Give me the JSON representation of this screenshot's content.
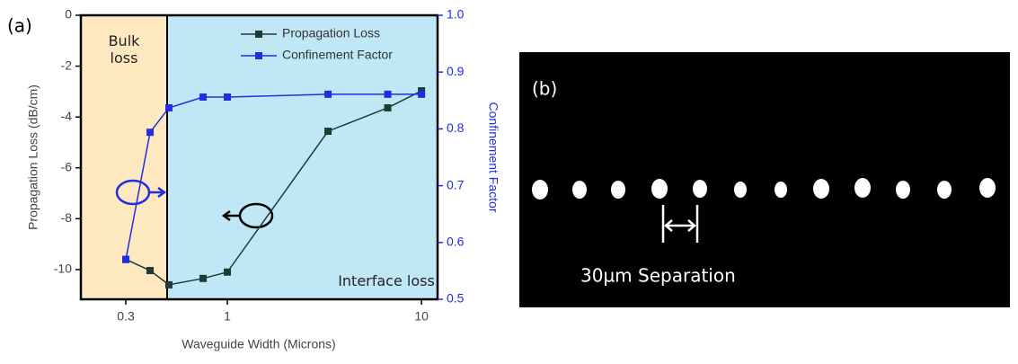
{
  "chart_data": {
    "type": "line",
    "panel_label": "(a)",
    "xlabel": "Waveguide Width (Microns)",
    "ylabel": "Propagation Loss (dB/cm)",
    "y2label": "Confinement Factor",
    "x": [
      0.3,
      0.4,
      0.5,
      0.75,
      1,
      3.3,
      6.7,
      10
    ],
    "series": [
      {
        "name": "Propagation Loss",
        "color": "#1e3b36",
        "values": [
          -9.6,
          -10.04,
          -10.6,
          -10.35,
          -10.1,
          -4.56,
          -3.64,
          -2.97
        ]
      },
      {
        "name": "Confinement Factor",
        "color": "#1f2fe0",
        "axis": "y2",
        "values": [
          0.57,
          0.794,
          0.837,
          0.856,
          0.856,
          0.861,
          0.861,
          0.861
        ]
      }
    ],
    "xscale": "log",
    "xlim": [
      0.176,
      12.1
    ],
    "xticks": [
      0.3,
      1,
      10
    ],
    "ylim": [
      -11.17,
      0
    ],
    "yticks": [
      0,
      -2,
      -4,
      -6,
      -8,
      -10
    ],
    "y2lim": [
      0.5,
      1
    ],
    "y2ticks": [
      0.5,
      0.6,
      0.7,
      0.8,
      0.9,
      {
        "value": 1,
        "label": "1.0"
      }
    ],
    "legend": "upper right",
    "annotations": [
      "Bulk loss",
      "Interface loss"
    ]
  },
  "image": {
    "panel_label": "(b)",
    "label": "30µm Separation"
  }
}
